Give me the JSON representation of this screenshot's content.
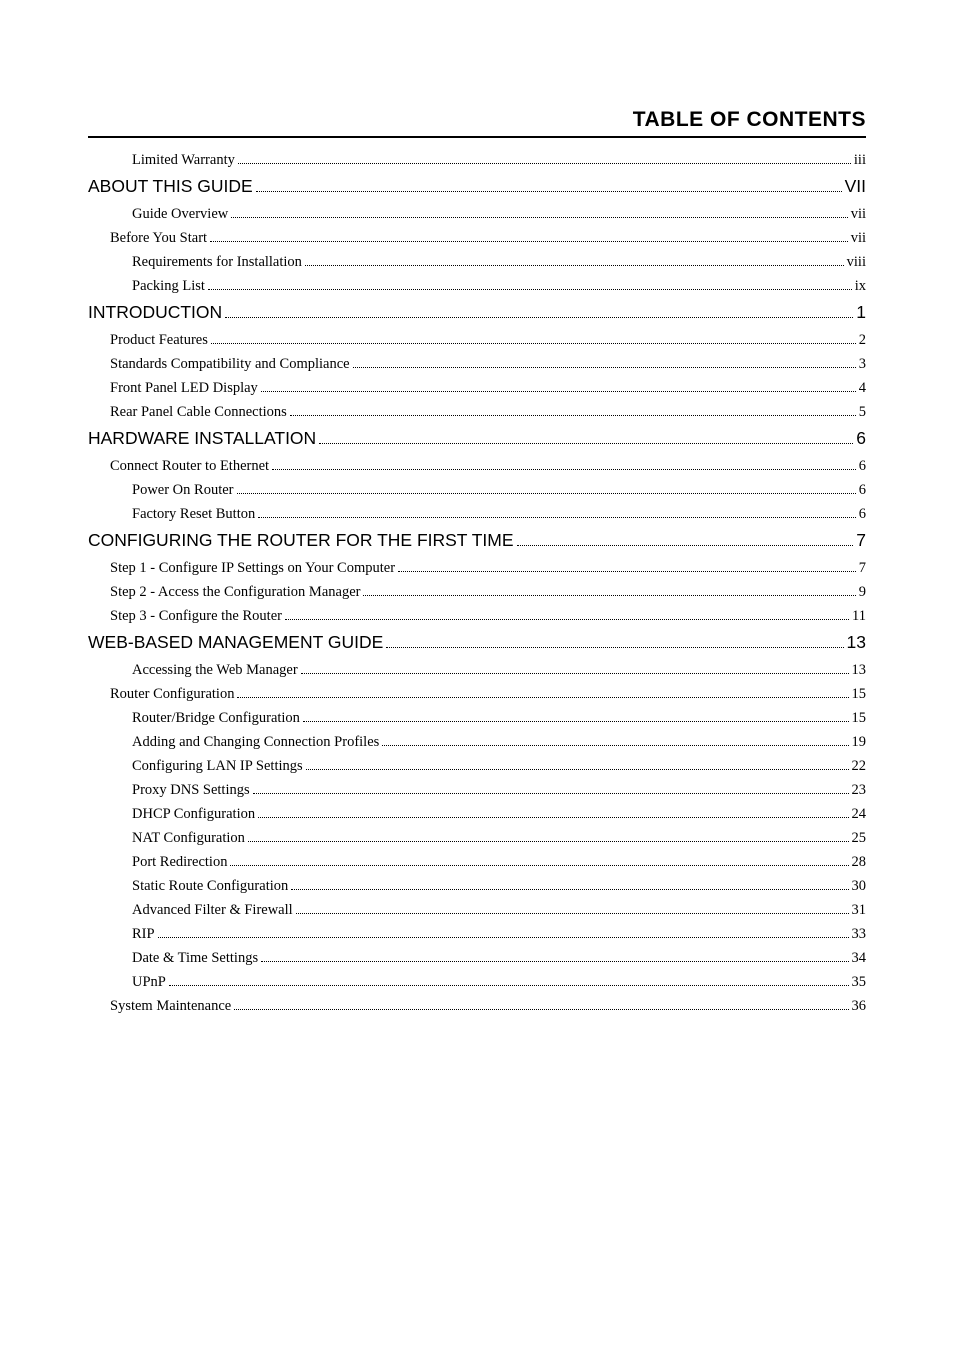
{
  "title": "TABLE OF CONTENTS",
  "entries": [
    {
      "level": 2,
      "label": "Limited Warranty",
      "page": "iii"
    },
    {
      "level": 0,
      "label": "ABOUT THIS GUIDE",
      "page": "VII"
    },
    {
      "level": 2,
      "label": "Guide Overview",
      "page": "vii"
    },
    {
      "level": 1,
      "label": "Before You Start",
      "page": "vii"
    },
    {
      "level": 2,
      "label": "Requirements for Installation",
      "page": "viii"
    },
    {
      "level": 2,
      "label": "Packing List",
      "page": "ix"
    },
    {
      "level": 0,
      "label": "INTRODUCTION",
      "page": "1"
    },
    {
      "level": 1,
      "label": "Product Features",
      "page": "2"
    },
    {
      "level": 1,
      "label": "Standards Compatibility and Compliance",
      "page": "3"
    },
    {
      "level": 1,
      "label": "Front Panel LED Display",
      "page": "4"
    },
    {
      "level": 1,
      "label": "Rear Panel Cable Connections",
      "page": "5"
    },
    {
      "level": 0,
      "label": "HARDWARE INSTALLATION",
      "page": "6"
    },
    {
      "level": 1,
      "label": "Connect Router to Ethernet",
      "page": "6"
    },
    {
      "level": 2,
      "label": "Power On Router",
      "page": "6"
    },
    {
      "level": 2,
      "label": "Factory Reset Button",
      "page": "6"
    },
    {
      "level": 0,
      "label": "CONFIGURING THE ROUTER FOR THE FIRST TIME",
      "page": "7"
    },
    {
      "level": 1,
      "label": "Step 1 - Configure IP Settings on Your Computer",
      "page": "7"
    },
    {
      "level": 1,
      "label": "Step 2 - Access the Configuration  Manager",
      "page": "9"
    },
    {
      "level": 1,
      "label": "Step 3 - Configure the Router",
      "page": "11"
    },
    {
      "level": 0,
      "label": "WEB-BASED MANAGEMENT GUIDE",
      "page": "13"
    },
    {
      "level": 2,
      "label": "Accessing the Web Manager",
      "page": "13"
    },
    {
      "level": 1,
      "label": "Router Configuration",
      "page": "15"
    },
    {
      "level": 2,
      "label": "Router/Bridge Configuration",
      "page": "15"
    },
    {
      "level": 2,
      "label": "Adding and Changing Connection Profiles",
      "page": "19"
    },
    {
      "level": 2,
      "label": "Configuring LAN IP Settings",
      "page": "22"
    },
    {
      "level": 2,
      "label": "Proxy DNS Settings",
      "page": "23"
    },
    {
      "level": 2,
      "label": "DHCP Configuration",
      "page": "24"
    },
    {
      "level": 2,
      "label": "NAT Configuration",
      "page": "25"
    },
    {
      "level": 2,
      "label": "Port Redirection",
      "page": "28"
    },
    {
      "level": 2,
      "label": "Static Route Configuration",
      "page": "30"
    },
    {
      "level": 2,
      "label": "Advanced Filter & Firewall",
      "page": "31"
    },
    {
      "level": 2,
      "label": "RIP",
      "page": "33"
    },
    {
      "level": 2,
      "label": "Date & Time Settings",
      "page": "34"
    },
    {
      "level": 2,
      "label": "UPnP",
      "page": "35"
    },
    {
      "level": 1,
      "label": "System Maintenance",
      "page": "36"
    }
  ]
}
